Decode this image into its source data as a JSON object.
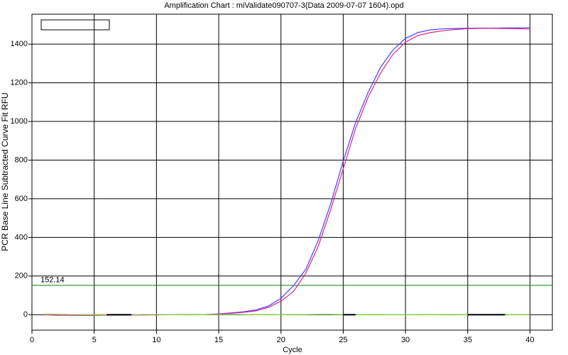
{
  "chart_data": {
    "type": "line",
    "title": "Amplification Chart : miValidate090707-3(Data 2009-07-07 1604).opd",
    "x_label": "Cycle",
    "y_label": "PCR Base Line Subtracted Curve Fit RFU",
    "x": [
      1,
      2,
      3,
      4,
      5,
      6,
      7,
      8,
      9,
      10,
      11,
      12,
      13,
      14,
      15,
      16,
      17,
      18,
      19,
      20,
      21,
      22,
      23,
      24,
      25,
      26,
      27,
      28,
      29,
      30,
      31,
      32,
      33,
      34,
      35,
      36,
      37,
      38,
      39,
      40
    ],
    "series": [
      {
        "color": "#4040ff",
        "values": [
          0,
          -2,
          -3,
          -3,
          -3,
          -2,
          -2,
          -1,
          -1,
          0,
          0,
          0,
          0,
          1,
          4,
          9,
          15,
          25,
          45,
          85,
          150,
          235,
          385,
          575,
          795,
          995,
          1150,
          1280,
          1370,
          1430,
          1460,
          1474,
          1479,
          1481,
          1482,
          1483,
          1483,
          1484,
          1484,
          1485
        ]
      },
      {
        "color": "#e0208a",
        "values": [
          0,
          -3,
          -3,
          -4,
          -4,
          -3,
          -2,
          -2,
          -1,
          -1,
          0,
          0,
          0,
          0,
          3,
          7,
          12,
          20,
          38,
          70,
          120,
          215,
          355,
          545,
          755,
          965,
          1125,
          1250,
          1348,
          1410,
          1445,
          1460,
          1469,
          1476,
          1480,
          1482,
          1482,
          1481,
          1480,
          1478
        ]
      },
      {
        "color": "#80e040",
        "values": [
          3,
          2,
          1,
          0,
          -1,
          -1,
          0,
          0,
          1,
          1,
          0,
          -1,
          -1,
          0,
          1,
          2,
          1,
          0,
          -1,
          0,
          1,
          1,
          2,
          2,
          1,
          0,
          -1,
          -1,
          0,
          0,
          -1,
          0,
          1,
          1,
          0,
          0,
          1,
          1,
          0,
          0
        ]
      },
      {
        "color": "#000000",
        "values": [
          null,
          null,
          null,
          null,
          null,
          0,
          0,
          0,
          null,
          null,
          null,
          null,
          null,
          null,
          null,
          null,
          null,
          null,
          null,
          null,
          null,
          null,
          null,
          null,
          0,
          0,
          null,
          null,
          null,
          null,
          null,
          null,
          null,
          null,
          0,
          0,
          0,
          0,
          null,
          null
        ]
      }
    ],
    "threshold": 152.14,
    "threshold_color": "#008000",
    "xlim": [
      0,
      41.8
    ],
    "xticks": [
      0,
      5,
      10,
      15,
      20,
      25,
      30,
      35,
      40
    ],
    "ylim": [
      -80,
      1555
    ],
    "yticks": [
      0,
      200,
      400,
      600,
      800,
      1000,
      1200,
      1400
    ],
    "grid": true
  }
}
